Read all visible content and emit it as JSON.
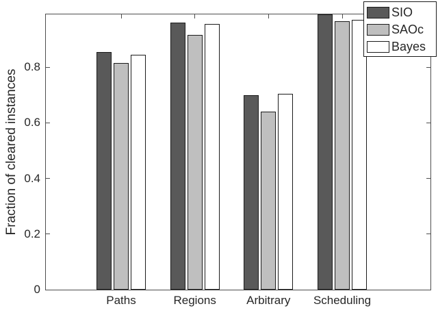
{
  "figure": {
    "background": "#ffffff",
    "axis_color": "#4d4d4d",
    "text_color": "#262626",
    "bar_edge_color": "#1a1a1a"
  },
  "chart_data": {
    "type": "bar",
    "title": "",
    "xlabel": "",
    "ylabel": "Fraction of cleared instances",
    "categories": [
      "Paths",
      "Regions",
      "Arbitrary",
      "Scheduling"
    ],
    "series": [
      {
        "name": "SIO",
        "color": "#595959",
        "values": [
          0.855,
          0.96,
          0.7,
          0.99
        ]
      },
      {
        "name": "SAOc",
        "color": "#bfbfbf",
        "values": [
          0.815,
          0.915,
          0.64,
          0.965
        ]
      },
      {
        "name": "Bayes",
        "color": "#ffffff",
        "values": [
          0.845,
          0.955,
          0.705,
          0.97
        ]
      }
    ],
    "yticks": [
      0,
      0.2,
      0.4,
      0.6,
      0.8
    ],
    "ytick_labels": [
      "0",
      "0.2",
      "0.4",
      "0.6",
      "0.8"
    ],
    "ylim": [
      0,
      0.99
    ],
    "grid": false,
    "legend_position": "top-right",
    "legend_entries": [
      "SIO",
      "SAOc",
      "Bayes"
    ]
  }
}
